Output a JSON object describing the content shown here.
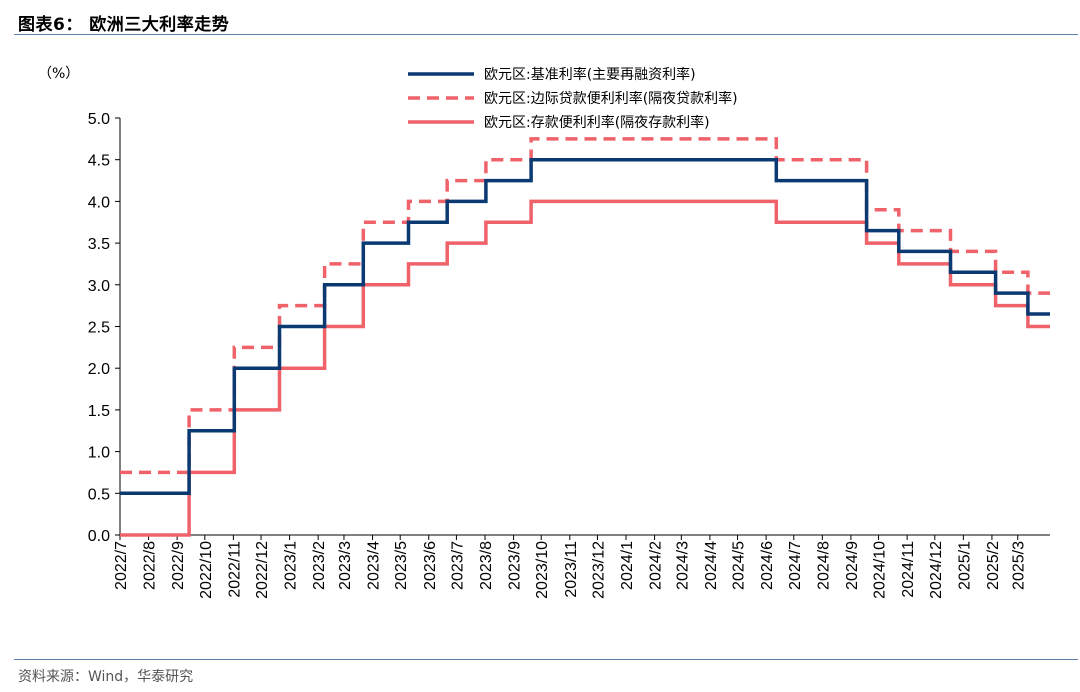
{
  "header": {
    "title": "图表6：  欧洲三大利率走势"
  },
  "footer": {
    "source": "资料来源：Wind，华泰研究"
  },
  "chart_data": {
    "type": "line",
    "step": true,
    "yunit": "（%）",
    "ylim": [
      0,
      5
    ],
    "yticks": [
      "0.0",
      "0.5",
      "1.0",
      "1.5",
      "2.0",
      "2.5",
      "3.0",
      "3.5",
      "4.0",
      "4.5",
      "5.0"
    ],
    "xlim": [
      "2022-07-01",
      "2025-04-05"
    ],
    "xticks": [
      "2022/7",
      "2022/8",
      "2022/9",
      "2022/10",
      "2022/11",
      "2022/12",
      "2023/1",
      "2023/2",
      "2023/3",
      "2023/4",
      "2023/5",
      "2023/6",
      "2023/7",
      "2023/8",
      "2023/9",
      "2023/10",
      "2023/11",
      "2023/12",
      "2024/1",
      "2024/2",
      "2024/3",
      "2024/4",
      "2024/5",
      "2024/6",
      "2024/7",
      "2024/8",
      "2024/9",
      "2024/10",
      "2024/11",
      "2024/12",
      "2025/1",
      "2025/2",
      "2025/3"
    ],
    "legend_position": "top-right",
    "grid": false,
    "series": [
      {
        "name": "欧元区:基准利率(主要再融资利率)",
        "color": "#0b3a73",
        "dash": "solid",
        "points": [
          [
            "2022-07-01",
            0.5
          ],
          [
            "2022-09-14",
            1.25
          ],
          [
            "2022-11-02",
            2.0
          ],
          [
            "2022-12-21",
            2.5
          ],
          [
            "2023-02-08",
            3.0
          ],
          [
            "2023-03-22",
            3.5
          ],
          [
            "2023-05-10",
            3.75
          ],
          [
            "2023-06-21",
            4.0
          ],
          [
            "2023-08-02",
            4.25
          ],
          [
            "2023-09-20",
            4.5
          ],
          [
            "2024-06-12",
            4.25
          ],
          [
            "2024-09-18",
            3.65
          ],
          [
            "2024-10-23",
            3.4
          ],
          [
            "2024-12-18",
            3.15
          ],
          [
            "2025-02-05",
            2.9
          ],
          [
            "2025-03-12",
            2.65
          ],
          [
            "2025-04-05",
            2.65
          ]
        ]
      },
      {
        "name": "欧元区:边际贷款便利利率(隔夜贷款利率)",
        "color": "#f0626a",
        "dash": "dashed",
        "points": [
          [
            "2022-07-01",
            0.75
          ],
          [
            "2022-09-14",
            1.5
          ],
          [
            "2022-11-02",
            2.25
          ],
          [
            "2022-12-21",
            2.75
          ],
          [
            "2023-02-08",
            3.25
          ],
          [
            "2023-03-22",
            3.75
          ],
          [
            "2023-05-10",
            4.0
          ],
          [
            "2023-06-21",
            4.25
          ],
          [
            "2023-08-02",
            4.5
          ],
          [
            "2023-09-20",
            4.75
          ],
          [
            "2024-06-12",
            4.5
          ],
          [
            "2024-09-18",
            3.9
          ],
          [
            "2024-10-23",
            3.65
          ],
          [
            "2024-12-18",
            3.4
          ],
          [
            "2025-02-05",
            3.15
          ],
          [
            "2025-03-12",
            2.9
          ],
          [
            "2025-04-05",
            2.9
          ]
        ]
      },
      {
        "name": "欧元区:存款便利利率(隔夜存款利率)",
        "color": "#f0626a",
        "dash": "solid",
        "points": [
          [
            "2022-07-01",
            0.0
          ],
          [
            "2022-09-14",
            0.75
          ],
          [
            "2022-11-02",
            1.5
          ],
          [
            "2022-12-21",
            2.0
          ],
          [
            "2023-02-08",
            2.5
          ],
          [
            "2023-03-22",
            3.0
          ],
          [
            "2023-05-10",
            3.25
          ],
          [
            "2023-06-21",
            3.5
          ],
          [
            "2023-08-02",
            3.75
          ],
          [
            "2023-09-20",
            4.0
          ],
          [
            "2024-06-12",
            3.75
          ],
          [
            "2024-09-18",
            3.5
          ],
          [
            "2024-10-23",
            3.25
          ],
          [
            "2024-12-18",
            3.0
          ],
          [
            "2025-02-05",
            2.75
          ],
          [
            "2025-03-12",
            2.5
          ],
          [
            "2025-04-05",
            2.5
          ]
        ]
      }
    ]
  }
}
